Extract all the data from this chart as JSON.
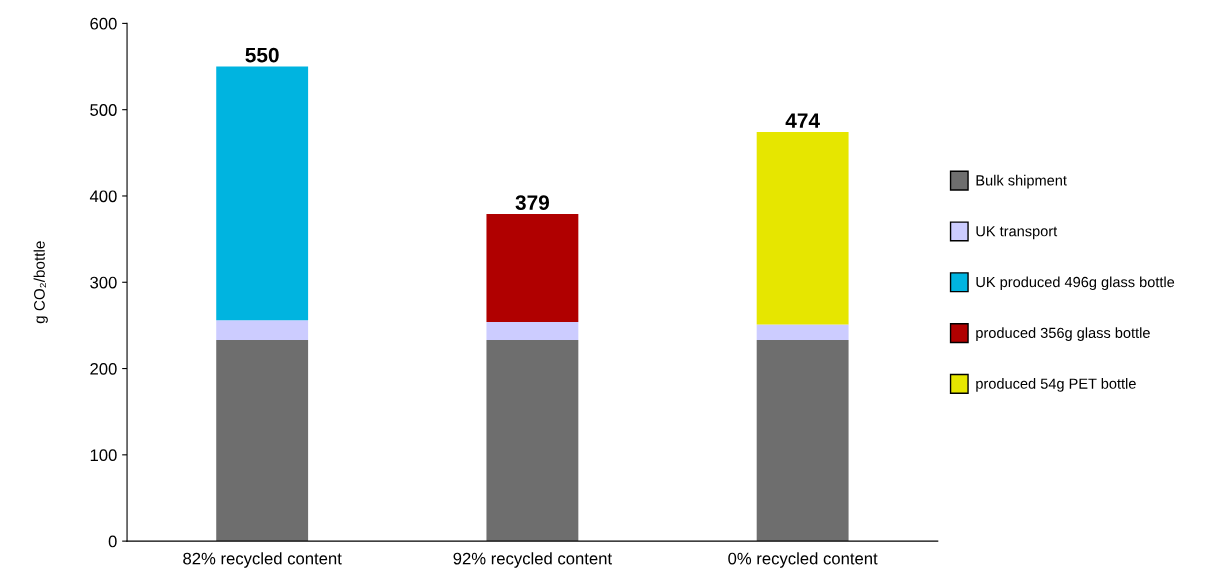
{
  "chart_data": {
    "type": "bar",
    "stacked": true,
    "ylabel": "g CO₂/bottle",
    "categories": [
      "82% recycled content",
      "92% recycled content",
      "0% recycled content"
    ],
    "series": [
      {
        "name": "Bulk shipment",
        "color": "#6e6e6e",
        "values": [
          233,
          233,
          233
        ]
      },
      {
        "name": "UK transport",
        "color": "#ccccff",
        "values": [
          23,
          21,
          18
        ]
      },
      {
        "name": "UK produced 496g glass bottle",
        "color": "#00b4e0",
        "values": [
          294,
          null,
          null
        ]
      },
      {
        "name": "produced 356g glass bottle",
        "color": "#b00000",
        "values": [
          null,
          125,
          null
        ]
      },
      {
        "name": "produced 54g PET bottle",
        "color": "#e6e600",
        "values": [
          null,
          null,
          223
        ]
      }
    ],
    "totals": [
      "550",
      "379",
      "474"
    ],
    "ylim": [
      0,
      600
    ],
    "yticks": [
      0,
      100,
      200,
      300,
      400,
      500,
      600
    ],
    "grid": false,
    "legend": "right"
  }
}
